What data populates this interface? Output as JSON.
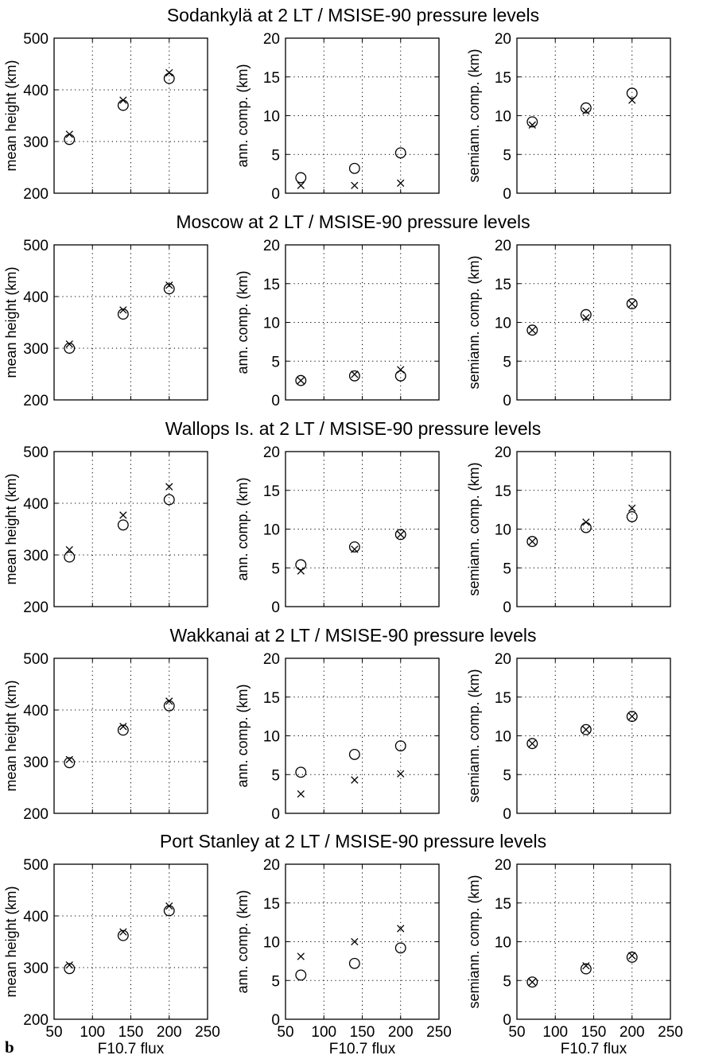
{
  "figure_label": "b",
  "chart_data": [
    {
      "title": "Sodankylä at 2 LT / MSISE-90 pressure levels",
      "panels": [
        {
          "type": "scatter",
          "ylabel": "mean height (km)",
          "xlabel": "",
          "xlim": [
            50,
            250
          ],
          "ylim": [
            200,
            500
          ],
          "xticks": [
            50,
            100,
            150,
            200,
            250
          ],
          "yticks": [
            200,
            300,
            400,
            500
          ],
          "grid": true,
          "series": [
            {
              "marker": "circle",
              "x": [
                70,
                140,
                200
              ],
              "y": [
                304,
                370,
                422
              ]
            },
            {
              "marker": "x",
              "x": [
                70,
                140,
                200
              ],
              "y": [
                314,
                380,
                433
              ]
            }
          ]
        },
        {
          "type": "scatter",
          "ylabel": "ann. comp. (km)",
          "xlabel": "",
          "xlim": [
            50,
            250
          ],
          "ylim": [
            0,
            20
          ],
          "xticks": [
            50,
            100,
            150,
            200,
            250
          ],
          "yticks": [
            0,
            5,
            10,
            15,
            20
          ],
          "grid": true,
          "series": [
            {
              "marker": "circle",
              "x": [
                70,
                140,
                200
              ],
              "y": [
                2.0,
                3.2,
                5.2
              ]
            },
            {
              "marker": "x",
              "x": [
                70,
                140,
                200
              ],
              "y": [
                1.0,
                1.0,
                1.3
              ]
            }
          ]
        },
        {
          "type": "scatter",
          "ylabel": "semiann. comp. (km)",
          "xlabel": "",
          "xlim": [
            50,
            250
          ],
          "ylim": [
            0,
            20
          ],
          "xticks": [
            50,
            100,
            150,
            200,
            250
          ],
          "yticks": [
            0,
            5,
            10,
            15,
            20
          ],
          "grid": true,
          "series": [
            {
              "marker": "circle",
              "x": [
                70,
                140,
                200
              ],
              "y": [
                9.2,
                11.0,
                12.9
              ]
            },
            {
              "marker": "x",
              "x": [
                70,
                140,
                200
              ],
              "y": [
                8.8,
                10.6,
                12.0
              ]
            }
          ]
        }
      ]
    },
    {
      "title": "Moscow at 2 LT / MSISE-90 pressure levels",
      "panels": [
        {
          "type": "scatter",
          "ylabel": "mean height (km)",
          "xlabel": "",
          "xlim": [
            50,
            250
          ],
          "ylim": [
            200,
            500
          ],
          "xticks": [
            50,
            100,
            150,
            200,
            250
          ],
          "yticks": [
            200,
            300,
            400,
            500
          ],
          "grid": true,
          "series": [
            {
              "marker": "circle",
              "x": [
                70,
                140,
                200
              ],
              "y": [
                300,
                366,
                415
              ]
            },
            {
              "marker": "x",
              "x": [
                70,
                140,
                200
              ],
              "y": [
                308,
                374,
                422
              ]
            }
          ]
        },
        {
          "type": "scatter",
          "ylabel": "ann. comp. (km)",
          "xlabel": "",
          "xlim": [
            50,
            250
          ],
          "ylim": [
            0,
            20
          ],
          "xticks": [
            50,
            100,
            150,
            200,
            250
          ],
          "yticks": [
            0,
            5,
            10,
            15,
            20
          ],
          "grid": true,
          "series": [
            {
              "marker": "circle",
              "x": [
                70,
                140,
                200
              ],
              "y": [
                2.5,
                3.1,
                3.1
              ]
            },
            {
              "marker": "x",
              "x": [
                70,
                140,
                200
              ],
              "y": [
                2.5,
                3.3,
                3.9
              ]
            }
          ]
        },
        {
          "type": "scatter",
          "ylabel": "semiann. comp. (km)",
          "xlabel": "",
          "xlim": [
            50,
            250
          ],
          "ylim": [
            0,
            20
          ],
          "xticks": [
            50,
            100,
            150,
            200,
            250
          ],
          "yticks": [
            0,
            5,
            10,
            15,
            20
          ],
          "grid": true,
          "series": [
            {
              "marker": "circle",
              "x": [
                70,
                140,
                200
              ],
              "y": [
                9.0,
                11.0,
                12.4
              ]
            },
            {
              "marker": "x",
              "x": [
                70,
                140,
                200
              ],
              "y": [
                9.0,
                10.6,
                12.4
              ]
            }
          ]
        }
      ]
    },
    {
      "title": "Wallops Is. at 2 LT / MSISE-90 pressure levels",
      "panels": [
        {
          "type": "scatter",
          "ylabel": "mean height (km)",
          "xlabel": "",
          "xlim": [
            50,
            250
          ],
          "ylim": [
            200,
            500
          ],
          "xticks": [
            50,
            100,
            150,
            200,
            250
          ],
          "yticks": [
            200,
            300,
            400,
            500
          ],
          "grid": true,
          "series": [
            {
              "marker": "circle",
              "x": [
                70,
                140,
                200
              ],
              "y": [
                296,
                358,
                407
              ]
            },
            {
              "marker": "x",
              "x": [
                70,
                140,
                200
              ],
              "y": [
                310,
                377,
                432
              ]
            }
          ]
        },
        {
          "type": "scatter",
          "ylabel": "ann. comp. (km)",
          "xlabel": "",
          "xlim": [
            50,
            250
          ],
          "ylim": [
            0,
            20
          ],
          "xticks": [
            50,
            100,
            150,
            200,
            250
          ],
          "yticks": [
            0,
            5,
            10,
            15,
            20
          ],
          "grid": true,
          "series": [
            {
              "marker": "circle",
              "x": [
                70,
                140,
                200
              ],
              "y": [
                5.4,
                7.7,
                9.3
              ]
            },
            {
              "marker": "x",
              "x": [
                70,
                140,
                200
              ],
              "y": [
                4.6,
                7.4,
                9.3
              ]
            }
          ]
        },
        {
          "type": "scatter",
          "ylabel": "semiann. comp. (km)",
          "xlabel": "",
          "xlim": [
            50,
            250
          ],
          "ylim": [
            0,
            20
          ],
          "xticks": [
            50,
            100,
            150,
            200,
            250
          ],
          "yticks": [
            0,
            5,
            10,
            15,
            20
          ],
          "grid": true,
          "series": [
            {
              "marker": "circle",
              "x": [
                70,
                140,
                200
              ],
              "y": [
                8.4,
                10.2,
                11.6
              ]
            },
            {
              "marker": "x",
              "x": [
                70,
                140,
                200
              ],
              "y": [
                8.4,
                10.9,
                12.7
              ]
            }
          ]
        }
      ]
    },
    {
      "title": "Wakkanai at 2 LT / MSISE-90 pressure levels",
      "panels": [
        {
          "type": "scatter",
          "ylabel": "mean height (km)",
          "xlabel": "",
          "xlim": [
            50,
            250
          ],
          "ylim": [
            200,
            500
          ],
          "xticks": [
            50,
            100,
            150,
            200,
            250
          ],
          "yticks": [
            200,
            300,
            400,
            500
          ],
          "grid": true,
          "series": [
            {
              "marker": "circle",
              "x": [
                70,
                140,
                200
              ],
              "y": [
                298,
                361,
                408
              ]
            },
            {
              "marker": "x",
              "x": [
                70,
                140,
                200
              ],
              "y": [
                304,
                368,
                417
              ]
            }
          ]
        },
        {
          "type": "scatter",
          "ylabel": "ann. comp. (km)",
          "xlabel": "",
          "xlim": [
            50,
            250
          ],
          "ylim": [
            0,
            20
          ],
          "xticks": [
            50,
            100,
            150,
            200,
            250
          ],
          "yticks": [
            0,
            5,
            10,
            15,
            20
          ],
          "grid": true,
          "series": [
            {
              "marker": "circle",
              "x": [
                70,
                140,
                200
              ],
              "y": [
                5.3,
                7.6,
                8.7
              ]
            },
            {
              "marker": "x",
              "x": [
                70,
                140,
                200
              ],
              "y": [
                2.5,
                4.3,
                5.1
              ]
            }
          ]
        },
        {
          "type": "scatter",
          "ylabel": "semiann. comp. (km)",
          "xlabel": "",
          "xlim": [
            50,
            250
          ],
          "ylim": [
            0,
            20
          ],
          "xticks": [
            50,
            100,
            150,
            200,
            250
          ],
          "yticks": [
            0,
            5,
            10,
            15,
            20
          ],
          "grid": true,
          "series": [
            {
              "marker": "circle",
              "x": [
                70,
                140,
                200
              ],
              "y": [
                9.0,
                10.8,
                12.5
              ]
            },
            {
              "marker": "x",
              "x": [
                70,
                140,
                200
              ],
              "y": [
                9.0,
                10.8,
                12.5
              ]
            }
          ]
        }
      ]
    },
    {
      "title": "Port Stanley at 2 LT / MSISE-90 pressure levels",
      "panels": [
        {
          "type": "scatter",
          "ylabel": "mean height (km)",
          "xlabel": "F10.7 flux",
          "xlim": [
            50,
            250
          ],
          "ylim": [
            200,
            500
          ],
          "xticks": [
            50,
            100,
            150,
            200,
            250
          ],
          "yticks": [
            200,
            300,
            400,
            500
          ],
          "grid": true,
          "series": [
            {
              "marker": "circle",
              "x": [
                70,
                140,
                200
              ],
              "y": [
                298,
                362,
                410
              ]
            },
            {
              "marker": "x",
              "x": [
                70,
                140,
                200
              ],
              "y": [
                305,
                369,
                419
              ]
            }
          ]
        },
        {
          "type": "scatter",
          "ylabel": "ann. comp. (km)",
          "xlabel": "F10.7 flux",
          "xlim": [
            50,
            250
          ],
          "ylim": [
            0,
            20
          ],
          "xticks": [
            50,
            100,
            150,
            200,
            250
          ],
          "yticks": [
            0,
            5,
            10,
            15,
            20
          ],
          "grid": true,
          "series": [
            {
              "marker": "circle",
              "x": [
                70,
                140,
                200
              ],
              "y": [
                5.7,
                7.2,
                9.2
              ]
            },
            {
              "marker": "x",
              "x": [
                70,
                140,
                200
              ],
              "y": [
                8.1,
                10.0,
                11.7
              ]
            }
          ]
        },
        {
          "type": "scatter",
          "ylabel": "semiann. comp. (km)",
          "xlabel": "F10.7 flux",
          "xlim": [
            50,
            250
          ],
          "ylim": [
            0,
            20
          ],
          "xticks": [
            50,
            100,
            150,
            200,
            250
          ],
          "yticks": [
            0,
            5,
            10,
            15,
            20
          ],
          "grid": true,
          "series": [
            {
              "marker": "circle",
              "x": [
                70,
                140,
                200
              ],
              "y": [
                4.8,
                6.5,
                8.0
              ]
            },
            {
              "marker": "x",
              "x": [
                70,
                140,
                200
              ],
              "y": [
                4.8,
                6.9,
                8.2
              ]
            }
          ]
        }
      ]
    }
  ]
}
